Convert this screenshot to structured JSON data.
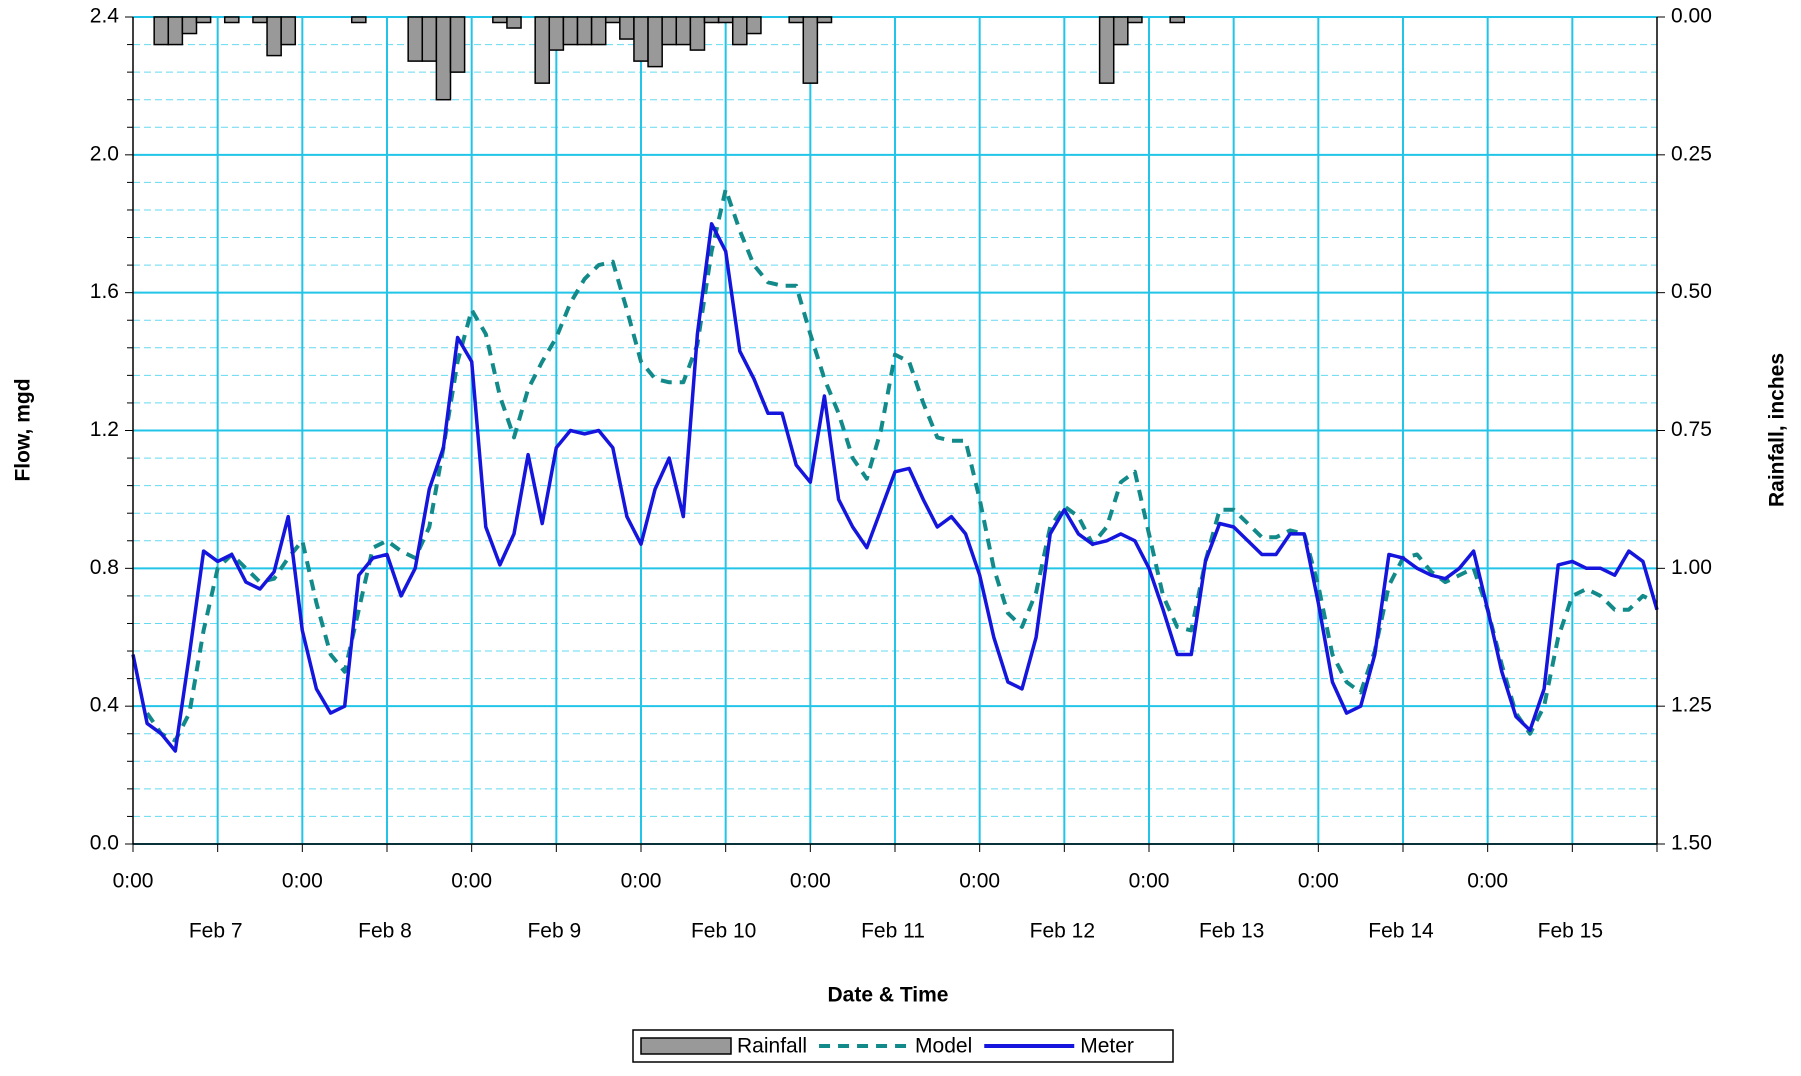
{
  "chart_data": {
    "type": "line",
    "xlabel": "Date & Time",
    "ylabel": "Flow, mgd",
    "y2label": "Rainfall, inches",
    "categories": [
      "0:00",
      null,
      null,
      null,
      null,
      null,
      null,
      null,
      null,
      null,
      null,
      null,
      "0:00",
      null,
      null,
      null,
      null,
      null,
      null,
      null,
      null,
      null,
      null,
      null,
      "0:00",
      null,
      null,
      null,
      null,
      null,
      null,
      null,
      null,
      null,
      null,
      null,
      "0:00",
      null,
      null,
      null,
      null,
      null,
      null,
      null,
      null,
      null,
      null,
      null,
      "0:00",
      null,
      null,
      null,
      null,
      null,
      null,
      null,
      null,
      null,
      null,
      null,
      "0:00",
      null,
      null,
      null,
      null,
      null,
      null,
      null,
      null,
      null,
      null,
      null,
      "0:00",
      null,
      null,
      null,
      null,
      null,
      null,
      null,
      null,
      null,
      null,
      null,
      "0:00",
      null,
      null,
      null,
      null,
      null,
      null,
      null,
      null,
      null,
      null,
      null,
      "0:00",
      null,
      null,
      null,
      null,
      null,
      null,
      null,
      null,
      null,
      null,
      null,
      null
    ],
    "date_labels": [
      "Feb 7",
      "Feb 8",
      "Feb 9",
      "Feb 10",
      "Feb 11",
      "Feb 12",
      "Feb 13",
      "Feb 14",
      "Feb 15"
    ],
    "ylim": [
      0,
      2.4
    ],
    "yticks": [
      {
        "value": 0,
        "label": "0.0"
      },
      0.4,
      0.8,
      1.2,
      1.6,
      {
        "value": 2,
        "label": "2.0"
      },
      2.4
    ],
    "yminorticks": [
      0.08,
      0.16,
      0.24,
      0.32,
      0.48,
      0.56,
      0.64,
      0.72,
      0.88,
      0.96,
      1.04,
      1.12,
      1.28,
      1.36,
      1.44,
      1.52,
      1.68,
      1.76,
      1.84,
      1.92,
      2.08,
      2.16,
      2.24,
      2.32
    ],
    "y2lim": [
      1.5,
      0
    ],
    "y2ticks": [
      {
        "value": 0,
        "label": "0.00"
      },
      {
        "value": 0.25,
        "label": "0.25"
      },
      {
        "value": 0.5,
        "label": "0.50"
      },
      {
        "value": 0.75,
        "label": "0.75"
      },
      {
        "value": 1,
        "label": "1.00"
      },
      {
        "value": 1.25,
        "label": "1.25"
      },
      {
        "value": 1.5,
        "label": "1.50"
      }
    ],
    "grid": true,
    "legend": "bottom",
    "series": [
      {
        "name": "Rainfall",
        "type": "bar",
        "axis": "y2",
        "color": "#999999",
        "values": [
          0,
          0,
          0.05,
          0.05,
          0.03,
          0.01,
          0,
          0.01,
          0,
          0.01,
          0.07,
          0.05,
          0,
          0,
          0,
          0,
          0.01,
          0,
          0,
          0,
          0.08,
          0.08,
          0.15,
          0.1,
          0,
          0,
          0.01,
          0.02,
          0,
          0.12,
          0.06,
          0.05,
          0.05,
          0.05,
          0.01,
          0.04,
          0.08,
          0.09,
          0.05,
          0.05,
          0.06,
          0.01,
          0.01,
          0.05,
          0.03,
          0,
          0,
          0.01,
          0.12,
          0.01,
          0,
          0,
          0,
          0,
          0,
          0,
          0,
          0,
          0,
          0,
          0,
          0,
          0,
          0,
          0,
          0,
          0,
          0,
          0,
          0.12,
          0.05,
          0.01,
          0,
          0,
          0.01,
          0,
          0,
          0,
          0,
          0,
          0,
          0,
          0,
          0,
          0,
          0,
          0,
          0,
          0,
          0,
          0,
          0,
          0,
          0,
          0,
          0,
          0,
          0,
          0,
          0,
          0,
          0,
          0,
          0,
          0,
          0,
          0,
          0,
          0
        ]
      },
      {
        "name": "Model",
        "type": "line",
        "dashed": true,
        "color": "#138a8a",
        "values": [
          null,
          0.38,
          0.32,
          0.3,
          0.38,
          0.62,
          0.8,
          0.84,
          0.8,
          0.76,
          0.77,
          0.83,
          0.88,
          0.7,
          0.55,
          0.5,
          0.68,
          0.86,
          0.88,
          0.85,
          0.83,
          0.92,
          1.15,
          1.4,
          1.55,
          1.48,
          1.3,
          1.18,
          1.32,
          1.4,
          1.47,
          1.57,
          1.64,
          1.68,
          1.69,
          1.55,
          1.4,
          1.35,
          1.34,
          1.34,
          1.45,
          1.72,
          1.9,
          1.78,
          1.68,
          1.63,
          1.62,
          1.62,
          1.48,
          1.35,
          1.25,
          1.12,
          1.06,
          1.2,
          1.42,
          1.4,
          1.28,
          1.18,
          1.17,
          1.17,
          1.0,
          0.8,
          0.67,
          0.63,
          0.73,
          0.92,
          0.98,
          0.95,
          0.87,
          0.92,
          1.05,
          1.08,
          0.9,
          0.72,
          0.63,
          0.62,
          0.82,
          0.97,
          0.97,
          0.93,
          0.89,
          0.89,
          0.91,
          0.9,
          0.75,
          0.55,
          0.47,
          0.44,
          0.56,
          0.75,
          0.83,
          0.84,
          0.79,
          0.76,
          0.78,
          0.8,
          0.68,
          0.52,
          0.38,
          0.32,
          0.4,
          0.6,
          0.72,
          0.74,
          0.72,
          0.68,
          0.68,
          0.72,
          0.7
        ]
      },
      {
        "name": "Meter",
        "type": "line",
        "color": "#1515dd",
        "values": [
          0.55,
          0.35,
          0.32,
          0.27,
          0.55,
          0.85,
          0.82,
          0.84,
          0.76,
          0.74,
          0.79,
          0.95,
          0.62,
          0.45,
          0.38,
          0.4,
          0.78,
          0.83,
          0.84,
          0.72,
          0.8,
          1.03,
          1.15,
          1.47,
          1.4,
          0.92,
          0.81,
          0.9,
          1.13,
          0.93,
          1.15,
          1.2,
          1.19,
          1.2,
          1.15,
          0.95,
          0.87,
          1.03,
          1.12,
          0.95,
          1.48,
          1.8,
          1.72,
          1.43,
          1.35,
          1.25,
          1.25,
          1.1,
          1.05,
          1.3,
          1.0,
          0.92,
          0.86,
          0.97,
          1.08,
          1.09,
          1.0,
          0.92,
          0.95,
          0.9,
          0.78,
          0.6,
          0.47,
          0.45,
          0.6,
          0.9,
          0.97,
          0.9,
          0.87,
          0.88,
          0.9,
          0.88,
          0.8,
          0.68,
          0.55,
          0.55,
          0.82,
          0.93,
          0.92,
          0.88,
          0.84,
          0.84,
          0.9,
          0.9,
          0.7,
          0.47,
          0.38,
          0.4,
          0.55,
          0.84,
          0.83,
          0.8,
          0.78,
          0.77,
          0.8,
          0.85,
          0.68,
          0.5,
          0.37,
          0.33,
          0.45,
          0.81,
          0.82,
          0.8,
          0.8,
          0.78,
          0.85,
          0.82,
          0.68
        ]
      }
    ]
  }
}
